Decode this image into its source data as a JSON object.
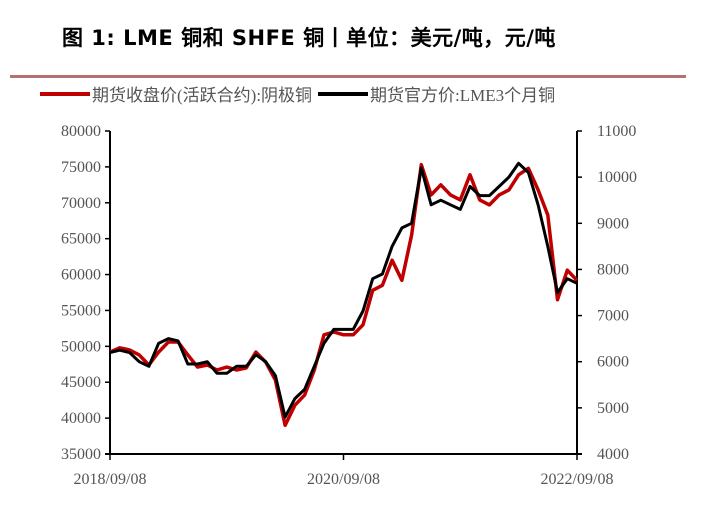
{
  "title": "图 1:  LME 铜和 SHFE 铜丨单位：美元/吨，元/吨",
  "chart_data": {
    "type": "line",
    "title": "图 1:  LME 铜和 SHFE 铜丨单位：美元/吨，元/吨",
    "x": [
      "2018/09",
      "2018/10",
      "2018/11",
      "2018/12",
      "2019/01",
      "2019/02",
      "2019/03",
      "2019/04",
      "2019/05",
      "2019/06",
      "2019/07",
      "2019/08",
      "2019/09",
      "2019/10",
      "2019/11",
      "2019/12",
      "2020/01",
      "2020/02",
      "2020/03",
      "2020/04",
      "2020/05",
      "2020/06",
      "2020/07",
      "2020/08",
      "2020/09",
      "2020/10",
      "2020/11",
      "2020/12",
      "2021/01",
      "2021/02",
      "2021/03",
      "2021/04",
      "2021/05",
      "2021/06",
      "2021/07",
      "2021/08",
      "2021/09",
      "2021/10",
      "2021/11",
      "2021/12",
      "2022/01",
      "2022/02",
      "2022/03",
      "2022/04",
      "2022/05",
      "2022/06",
      "2022/07",
      "2022/08",
      "2022/09"
    ],
    "xticks": [
      "2018/09/08",
      "2020/09/08",
      "2022/09/08"
    ],
    "series": [
      {
        "name": "期货收盘价(活跃合约):阴极铜",
        "axis": "left",
        "color": "#c00000",
        "values": [
          49200,
          49800,
          49500,
          48800,
          47400,
          49200,
          50600,
          50600,
          48800,
          47100,
          47400,
          46700,
          47100,
          46700,
          47000,
          49200,
          47800,
          45300,
          39000,
          41800,
          43200,
          46700,
          51600,
          52000,
          51600,
          51600,
          53000,
          57800,
          58500,
          62000,
          59200,
          65500,
          75300,
          71100,
          72500,
          71100,
          70400,
          73900,
          70400,
          69700,
          71100,
          71800,
          73900,
          74800,
          71800,
          68300,
          56500,
          60600,
          59200
        ]
      },
      {
        "name": "期货官方价:LME3个月铜",
        "axis": "right",
        "color": "#000000",
        "values": [
          6200,
          6250,
          6200,
          6000,
          5900,
          6400,
          6500,
          6450,
          5950,
          5950,
          6000,
          5750,
          5750,
          5900,
          5900,
          6150,
          6000,
          5700,
          4800,
          5200,
          5400,
          5900,
          6400,
          6700,
          6700,
          6700,
          7100,
          7800,
          7900,
          8500,
          8900,
          9000,
          10200,
          9400,
          9500,
          9400,
          9300,
          9800,
          9600,
          9600,
          9800,
          10000,
          10300,
          10100,
          9400,
          8500,
          7500,
          7800,
          7700
        ]
      }
    ],
    "yleft": {
      "min": 35000,
      "max": 80000,
      "ticks": [
        35000,
        40000,
        45000,
        50000,
        55000,
        60000,
        65000,
        70000,
        75000,
        80000
      ]
    },
    "yright": {
      "min": 4000,
      "max": 11000,
      "ticks": [
        4000,
        5000,
        6000,
        7000,
        8000,
        9000,
        10000,
        11000
      ]
    },
    "grid": false,
    "legend": "top"
  }
}
